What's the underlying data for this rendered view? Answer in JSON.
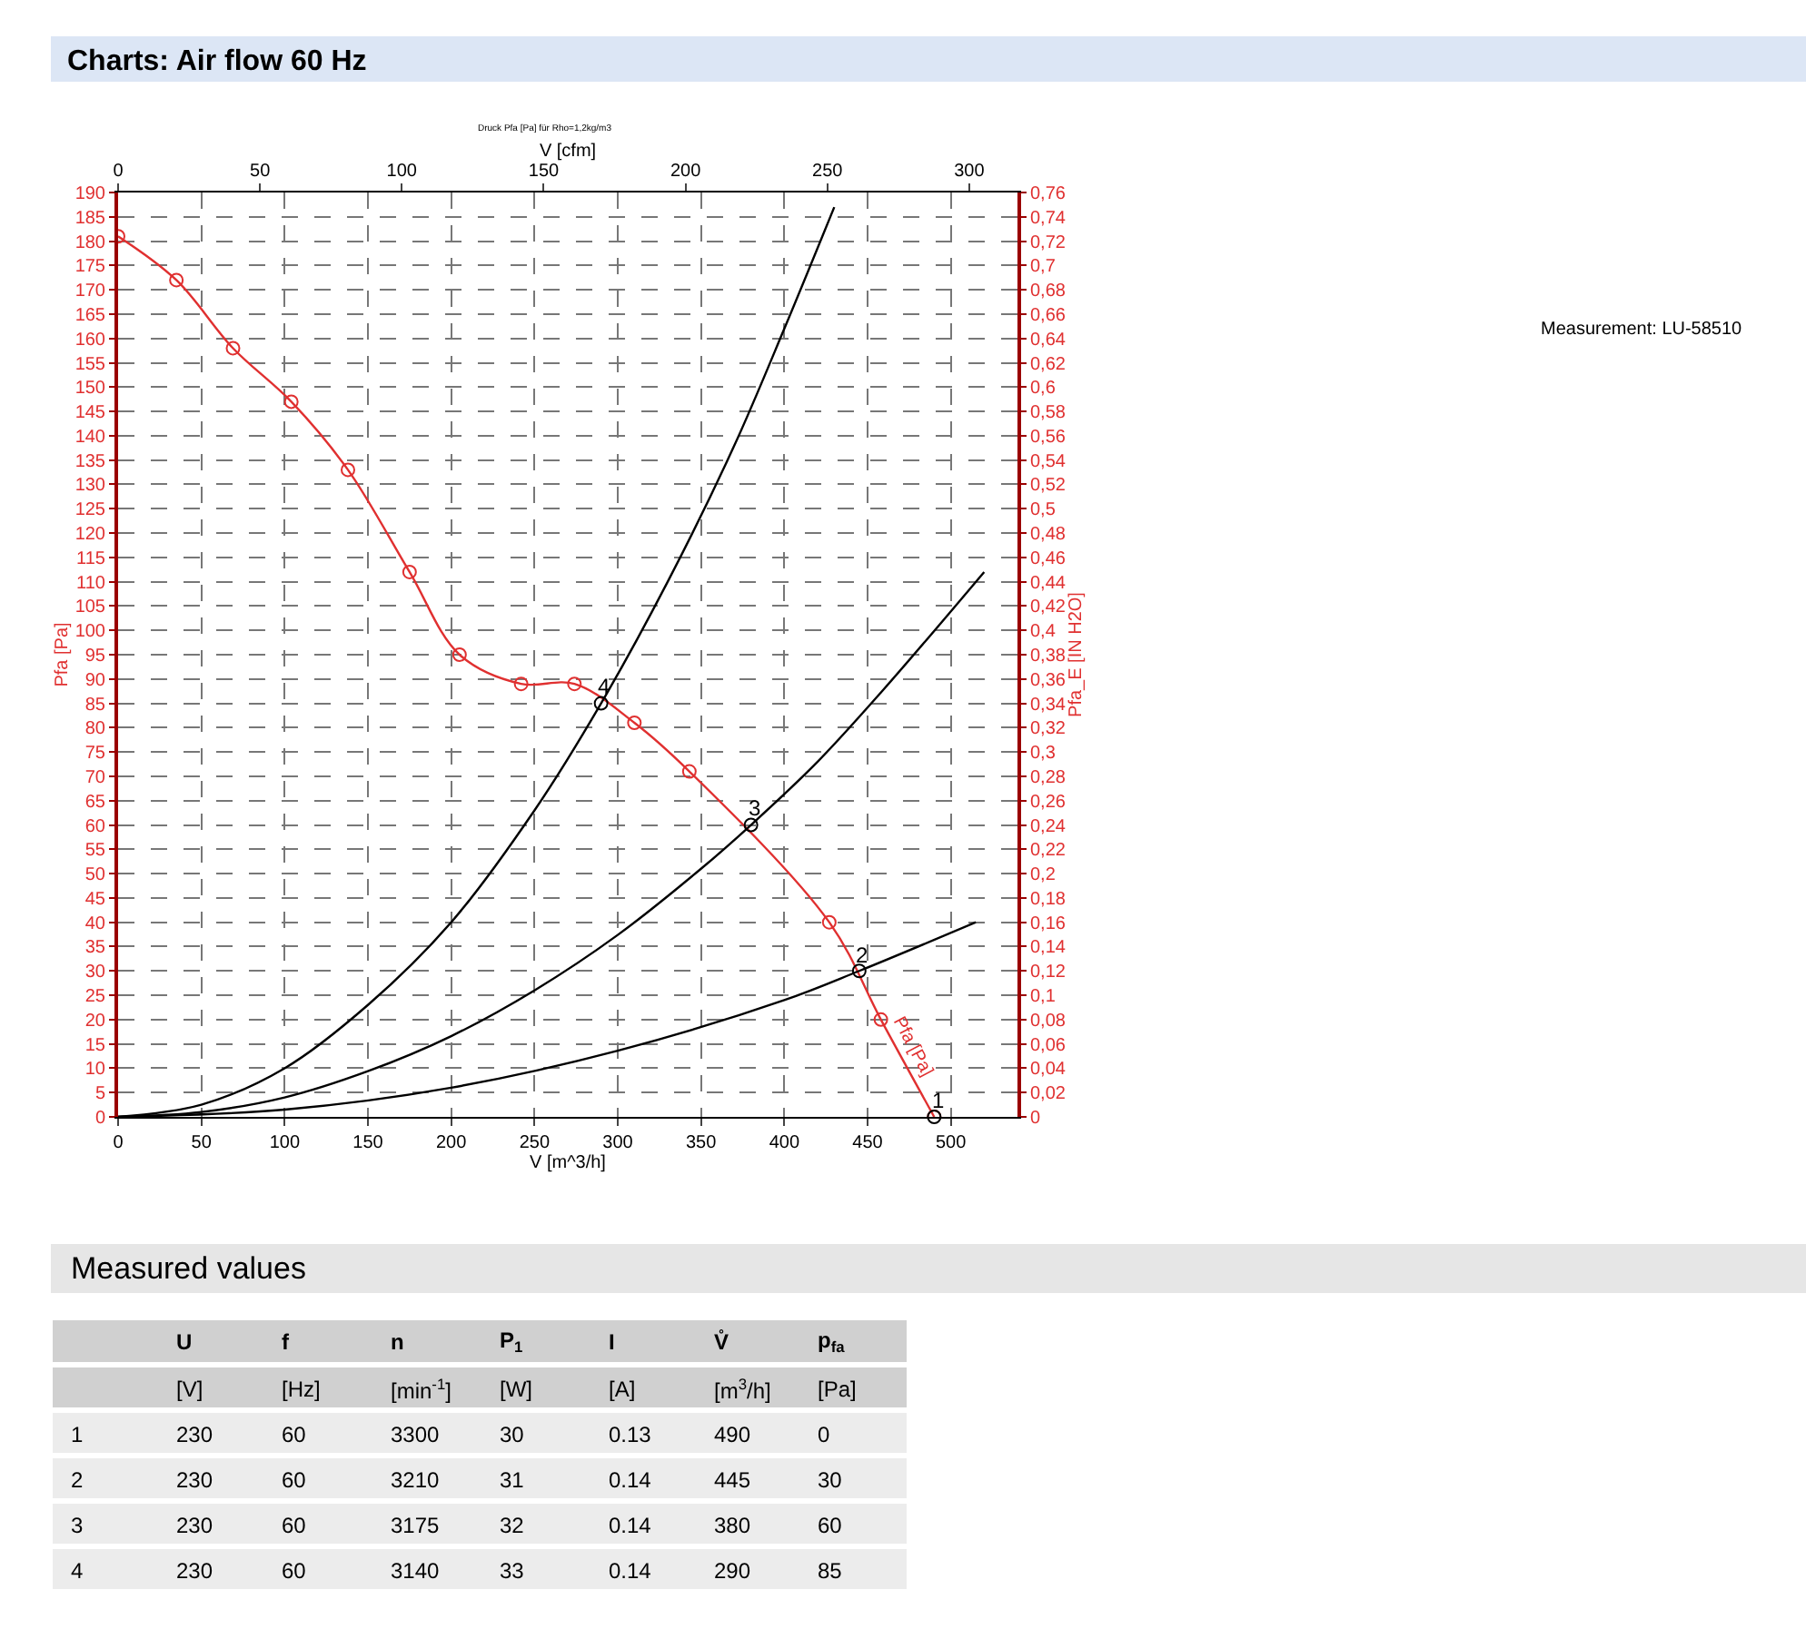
{
  "chart_data": {
    "type": "line",
    "title": "Charts: Air flow 60 Hz",
    "subtitle": "Measured values",
    "xlabel": "V [m^3/h]",
    "x2label": "V [cfm]",
    "ylabel": "Pfa [Pa]",
    "y2label": "Pfa_E [IN H2O]",
    "xlim": [
      0,
      540
    ],
    "xticks": [
      0,
      50,
      100,
      150,
      200,
      250,
      300,
      350,
      400,
      450,
      500
    ],
    "x2lim": [
      0,
      317
    ],
    "x2ticks": [
      0,
      50,
      100,
      150,
      200,
      250,
      300
    ],
    "ylim": [
      0,
      190
    ],
    "yticks": [
      0,
      5,
      10,
      15,
      20,
      25,
      30,
      35,
      40,
      45,
      50,
      55,
      60,
      65,
      70,
      75,
      80,
      85,
      90,
      95,
      100,
      105,
      110,
      115,
      120,
      125,
      130,
      135,
      140,
      145,
      150,
      155,
      160,
      165,
      170,
      175,
      180,
      185,
      190
    ],
    "y2lim": [
      0,
      0.76
    ],
    "y2ticks": [
      {
        "value": 0,
        "label": "0"
      },
      {
        "value": 0.02,
        "label": "0,02"
      },
      {
        "value": 0.04,
        "label": "0,04"
      },
      {
        "value": 0.06,
        "label": "0,06"
      },
      {
        "value": 0.08,
        "label": "0,08"
      },
      {
        "value": 0.1,
        "label": "0,1"
      },
      {
        "value": 0.12,
        "label": "0,12"
      },
      {
        "value": 0.14,
        "label": "0,14"
      },
      {
        "value": 0.16,
        "label": "0,16"
      },
      {
        "value": 0.18,
        "label": "0,18"
      },
      {
        "value": 0.2,
        "label": "0,2"
      },
      {
        "value": 0.22,
        "label": "0,22"
      },
      {
        "value": 0.24,
        "label": "0,24"
      },
      {
        "value": 0.26,
        "label": "0,26"
      },
      {
        "value": 0.28,
        "label": "0,28"
      },
      {
        "value": 0.3,
        "label": "0,3"
      },
      {
        "value": 0.32,
        "label": "0,32"
      },
      {
        "value": 0.34,
        "label": "0,34"
      },
      {
        "value": 0.36,
        "label": "0,36"
      },
      {
        "value": 0.38,
        "label": "0,38"
      },
      {
        "value": 0.4,
        "label": "0,4"
      },
      {
        "value": 0.42,
        "label": "0,42"
      },
      {
        "value": 0.44,
        "label": "0,44"
      },
      {
        "value": 0.46,
        "label": "0,46"
      },
      {
        "value": 0.48,
        "label": "0,48"
      },
      {
        "value": 0.5,
        "label": "0,5"
      },
      {
        "value": 0.52,
        "label": "0,52"
      },
      {
        "value": 0.54,
        "label": "0,54"
      },
      {
        "value": 0.56,
        "label": "0,56"
      },
      {
        "value": 0.58,
        "label": "0,58"
      },
      {
        "value": 0.6,
        "label": "0,6"
      },
      {
        "value": 0.62,
        "label": "0,62"
      },
      {
        "value": 0.64,
        "label": "0,64"
      },
      {
        "value": 0.66,
        "label": "0,66"
      },
      {
        "value": 0.68,
        "label": "0,68"
      },
      {
        "value": 0.7,
        "label": "0,7"
      },
      {
        "value": 0.72,
        "label": "0,72"
      },
      {
        "value": 0.74,
        "label": "0,74"
      },
      {
        "value": 0.76,
        "label": "0,76"
      }
    ],
    "grid": true,
    "line_style": "solid",
    "series": [
      {
        "color": "#e03030",
        "marker": "circle",
        "x": [
          0,
          35,
          69,
          104,
          138,
          175,
          205,
          242,
          274,
          310,
          343,
          427,
          458,
          490
        ],
        "values": [
          181,
          172,
          158,
          147,
          133,
          112,
          95,
          89,
          89,
          81,
          71,
          40,
          20,
          0
        ]
      },
      {
        "color": "#000000",
        "marker": "none",
        "x": [
          0,
          50,
          100,
          150,
          200,
          250,
          290,
          330,
          370,
          400,
          430
        ],
        "values": [
          0,
          2.5,
          10,
          23,
          40,
          63,
          85,
          110,
          138,
          162,
          187
        ]
      },
      {
        "color": "#000000",
        "marker": "none",
        "x": [
          0,
          50,
          100,
          150,
          200,
          250,
          300,
          350,
          380,
          420,
          460,
          520
        ],
        "values": [
          0,
          1,
          4,
          9.4,
          16.6,
          26,
          37.4,
          51,
          60,
          73,
          88,
          112
        ]
      },
      {
        "color": "#000000",
        "marker": "none",
        "x": [
          0,
          100,
          200,
          300,
          400,
          445,
          515
        ],
        "values": [
          0,
          1.5,
          6,
          13.6,
          24,
          30,
          40
        ]
      },
      {
        "type": "scatter",
        "color": "#000000",
        "marker": "circle",
        "x": [
          490,
          445,
          380,
          290
        ],
        "values": [
          0,
          30,
          60,
          85
        ]
      }
    ],
    "annotations": [
      "Druck Pfa [Pa] für Rho=1,2kg/m3",
      "Measurement: LU-58510",
      "Pfa [Pa]",
      {
        "text": "1",
        "x": 490,
        "y": 0
      },
      {
        "text": "2",
        "x": 445,
        "y": 30
      },
      {
        "text": "3",
        "x": 380,
        "y": 60
      },
      {
        "text": "4",
        "x": 290,
        "y": 85
      },
      "U",
      "f",
      "n",
      "P$_{1}$",
      "I",
      "V̊",
      "p$_{fa}$",
      "[V]",
      "[Hz]",
      "[min$^{-1}$]",
      "[W]",
      "[A]",
      "[m$^{3}$/h]",
      "[Pa]",
      "1",
      "230",
      "60",
      "3300",
      "30",
      "0.13",
      "490",
      "0",
      "2",
      "230",
      "60",
      "3210",
      "31",
      "0.14",
      "445",
      "30",
      "3",
      "230",
      "60",
      "3175",
      "32",
      "0.14",
      "380",
      "60",
      "4",
      "230",
      "60",
      "3140",
      "33",
      "0.14",
      "290",
      "85"
    ]
  }
}
